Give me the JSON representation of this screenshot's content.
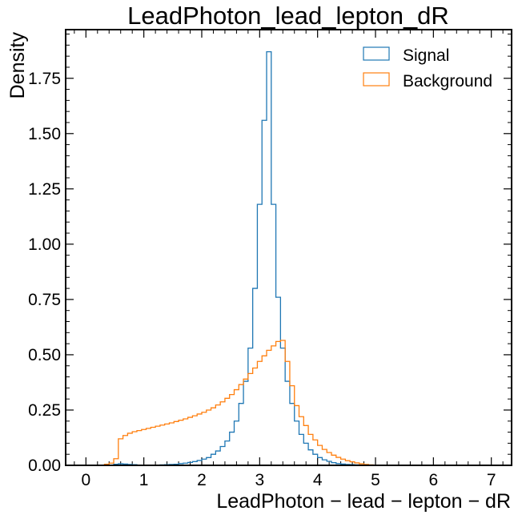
{
  "chart_data": {
    "type": "step-histogram",
    "title": "LeadPhoton_lead_lepton_dR",
    "xlabel": "LeadPhoton − lead − lepton − dR",
    "ylabel": "Density",
    "xlim": [
      -0.35,
      7.35
    ],
    "ylim": [
      0,
      1.97
    ],
    "x_ticks": [
      0,
      1,
      2,
      3,
      4,
      5,
      6,
      7
    ],
    "x_tick_labels": [
      "0",
      "1",
      "2",
      "3",
      "4",
      "5",
      "6",
      "7"
    ],
    "y_ticks": [
      0,
      0.25,
      0.5,
      0.75,
      1.0,
      1.25,
      1.5,
      1.75
    ],
    "y_tick_labels": [
      "0.00",
      "0.25",
      "0.50",
      "0.75",
      "1.00",
      "1.25",
      "1.50",
      "1.75"
    ],
    "bins": {
      "start": 0.0,
      "width": 0.08
    },
    "legend_position": "top-right",
    "series": [
      {
        "name": "Signal",
        "color": "#1f77b4",
        "values": [
          0,
          0,
          0,
          0,
          0,
          0,
          0.005,
          0.007,
          0.006,
          0.004,
          0.003,
          0,
          0,
          0,
          0,
          0.001,
          0.002,
          0.003,
          0.004,
          0.005,
          0.008,
          0.01,
          0.013,
          0.017,
          0.022,
          0.028,
          0.035,
          0.05,
          0.065,
          0.085,
          0.11,
          0.15,
          0.2,
          0.28,
          0.38,
          0.53,
          0.8,
          1.18,
          1.56,
          1.87,
          1.18,
          0.76,
          0.53,
          0.38,
          0.28,
          0.2,
          0.14,
          0.1,
          0.07,
          0.05,
          0.035,
          0.025,
          0.018,
          0.012,
          0.008,
          0.006,
          0.004,
          0.003,
          0.002,
          0.001,
          0.001,
          0.0005,
          0
        ]
      },
      {
        "name": "Background",
        "color": "#ff7f0e",
        "values": [
          0,
          0,
          0,
          0,
          0.005,
          0.01,
          0.03,
          0.12,
          0.135,
          0.145,
          0.152,
          0.157,
          0.162,
          0.167,
          0.172,
          0.177,
          0.182,
          0.187,
          0.192,
          0.198,
          0.204,
          0.21,
          0.217,
          0.224,
          0.232,
          0.24,
          0.25,
          0.26,
          0.273,
          0.287,
          0.303,
          0.32,
          0.342,
          0.365,
          0.39,
          0.415,
          0.44,
          0.47,
          0.495,
          0.52,
          0.54,
          0.56,
          0.565,
          0.47,
          0.36,
          0.27,
          0.22,
          0.18,
          0.14,
          0.115,
          0.09,
          0.072,
          0.058,
          0.046,
          0.036,
          0.028,
          0.021,
          0.016,
          0.011,
          0.007,
          0.004,
          0.002,
          0.0005,
          0
        ]
      }
    ]
  }
}
